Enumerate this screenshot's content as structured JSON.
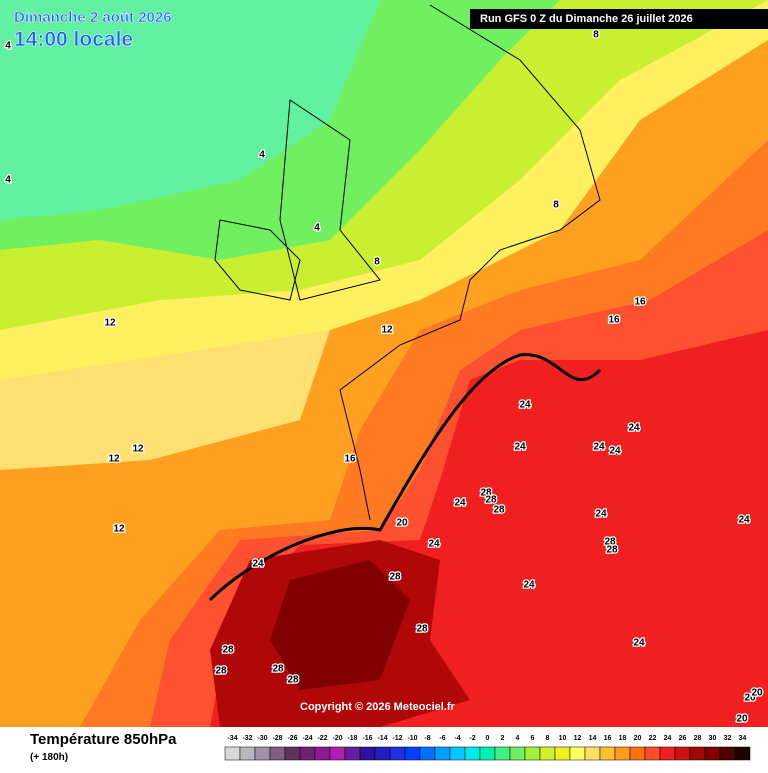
{
  "header": {
    "date": "Dimanche 2 août 2026",
    "time": "14:00 locale",
    "run": "Run GFS 0 Z du Dimanche 26 juillet 2026"
  },
  "contour_labels": [
    4,
    4,
    4,
    4,
    8,
    8,
    8,
    12,
    12,
    12,
    12,
    12,
    16,
    16,
    16,
    20,
    24,
    24,
    24,
    24,
    24,
    24,
    24,
    24,
    24,
    24,
    24,
    24,
    28,
    28,
    28,
    28,
    28,
    28,
    28,
    28,
    28,
    28,
    28,
    20,
    20,
    20
  ],
  "copyright": "Copyright © 2026 Meteociel.fr",
  "legend": {
    "title": "Température 850hPa",
    "subtitle": "(+ 180h)",
    "ticks": [
      -34,
      -32,
      -30,
      -28,
      -26,
      -24,
      -22,
      -20,
      -18,
      -16,
      -14,
      -12,
      -10,
      -8,
      -6,
      -4,
      -2,
      0,
      2,
      4,
      6,
      8,
      10,
      12,
      14,
      16,
      18,
      20,
      22,
      24,
      26,
      28,
      30,
      32,
      34
    ],
    "colors": [
      "#d8d8d8",
      "#b8b8b8",
      "#a090a8",
      "#806080",
      "#603060",
      "#702070",
      "#901890",
      "#b020b0",
      "#6020a0",
      "#3010a0",
      "#2020c0",
      "#2030e0",
      "#0040ff",
      "#0070ff",
      "#00a0ff",
      "#00c8ff",
      "#00e8e8",
      "#00f0b0",
      "#40f080",
      "#70f060",
      "#a0f040",
      "#d0f030",
      "#f0f020",
      "#ffff60",
      "#ffe060",
      "#ffc030",
      "#ff9a20",
      "#ff7010",
      "#ff4c30",
      "#f02020",
      "#d01010",
      "#a00808",
      "#800000",
      "#500000",
      "#200000"
    ]
  }
}
